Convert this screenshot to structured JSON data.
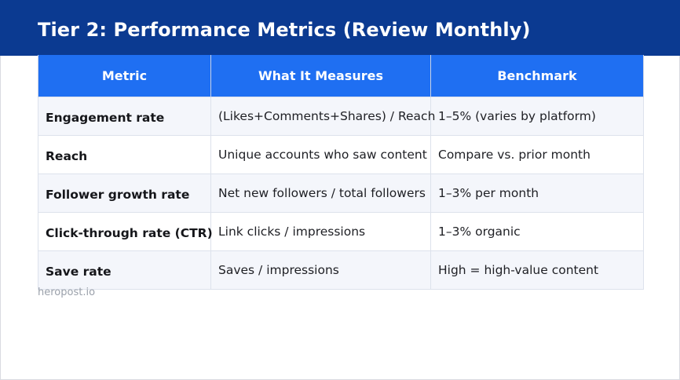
{
  "slide": {
    "title": "Tier 2: Performance Metrics (Review Monthly)",
    "source": "heropost.io",
    "colors": {
      "banner": "#0b3a91",
      "header_row": "#1f6ff2",
      "row_shade": "#f4f6fb"
    }
  },
  "table": {
    "headers": [
      "Metric",
      "What It Measures",
      "Benchmark"
    ],
    "rows": [
      {
        "metric": "Engagement rate",
        "measures": "(Likes+Comments+Shares) / Reach",
        "benchmark": "1–5% (varies by platform)"
      },
      {
        "metric": "Reach",
        "measures": "Unique accounts who saw content",
        "benchmark": "Compare vs. prior month"
      },
      {
        "metric": "Follower growth rate",
        "measures": "Net new followers / total followers",
        "benchmark": "1–3% per month"
      },
      {
        "metric": "Click-through rate (CTR)",
        "measures": "Link clicks / impressions",
        "benchmark": "1–3% organic"
      },
      {
        "metric": "Save rate",
        "measures": "Saves / impressions",
        "benchmark": "High = high-value content"
      }
    ]
  }
}
